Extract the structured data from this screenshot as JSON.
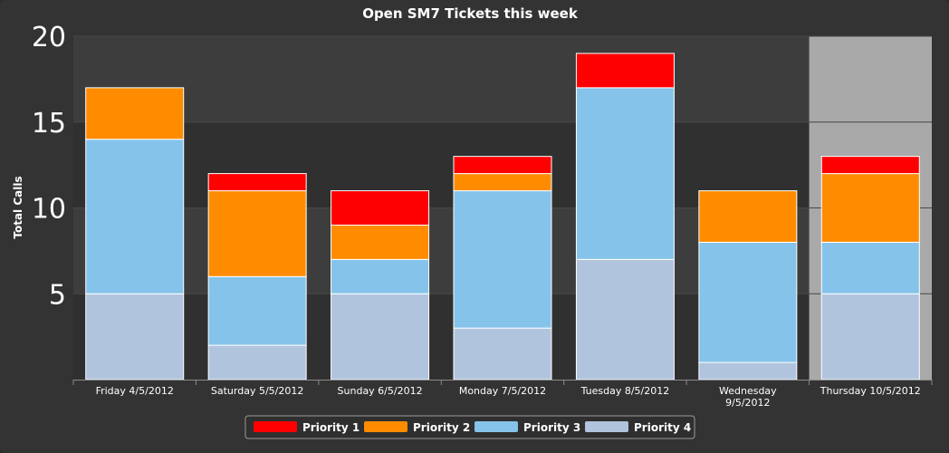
{
  "chart_data": {
    "type": "bar",
    "stacked": true,
    "title": "Open SM7 Tickets this week",
    "ylabel": "Total Calls",
    "xlabel": "",
    "ylim": [
      0,
      20
    ],
    "yticks": [
      5,
      10,
      15,
      20
    ],
    "categories": [
      [
        "Friday 4/5/2012"
      ],
      [
        "Saturday 5/5/2012"
      ],
      [
        "Sunday 6/5/2012"
      ],
      [
        "Monday 7/5/2012"
      ],
      [
        "Tuesday 8/5/2012"
      ],
      [
        "Wednesday",
        "9/5/2012"
      ],
      [
        "Thursday 10/5/2012"
      ]
    ],
    "highlighted_category_index": 6,
    "series": [
      {
        "name": "Priority 4",
        "color": "#b0c4de",
        "values": [
          5,
          2,
          5,
          3,
          7,
          1,
          5
        ]
      },
      {
        "name": "Priority 3",
        "color": "#85c3ea",
        "values": [
          9,
          4,
          2,
          8,
          10,
          7,
          3
        ]
      },
      {
        "name": "Priority 2",
        "color": "#ff8c00",
        "values": [
          3,
          5,
          2,
          1,
          0,
          3,
          4
        ]
      },
      {
        "name": "Priority 1",
        "color": "#ff0000",
        "values": [
          0,
          1,
          2,
          1,
          2,
          0,
          1
        ]
      }
    ],
    "legend": {
      "placement": "bottom-center",
      "order": [
        "Priority 1",
        "Priority 2",
        "Priority 3",
        "Priority 4"
      ]
    },
    "grid": true,
    "colors": {
      "background": "#333333",
      "plot_band_dark": "#303030",
      "plot_band_light": "#3d3d3d",
      "highlight": "#a9a9a9",
      "bar_border": "#ffffff"
    }
  }
}
